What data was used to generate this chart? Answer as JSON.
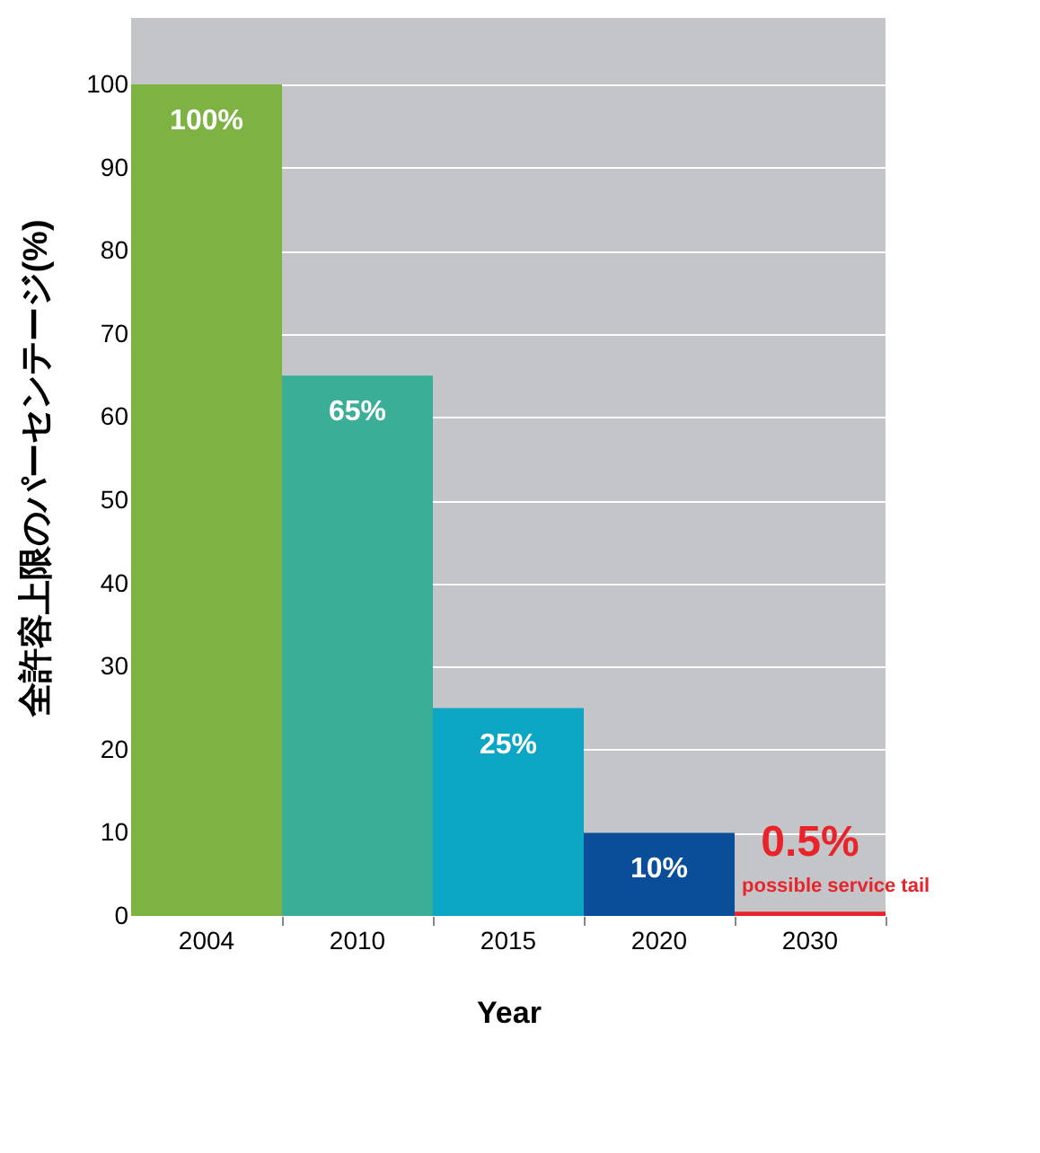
{
  "chart_data": {
    "type": "bar",
    "categories": [
      "2004",
      "2010",
      "2015",
      "2020",
      "2030"
    ],
    "values": [
      100,
      65,
      25,
      10,
      0.5
    ],
    "colors": [
      "#7cb342",
      "#3aae96",
      "#0aa6c4",
      "#0a4e9a",
      "#e8232a"
    ],
    "value_labels": [
      "100%",
      "65%",
      "25%",
      "10%",
      "0.5%"
    ],
    "xlabel": "Year",
    "ylabel": "全許容上限のパーセンテージ(%)",
    "ylim": [
      0,
      108
    ],
    "yticks": [
      0,
      10,
      20,
      30,
      40,
      50,
      60,
      70,
      80,
      90,
      100
    ],
    "grid": "y",
    "annotations": [
      {
        "text": "possible service tail",
        "x": "2030",
        "y": 0.5
      }
    ]
  }
}
